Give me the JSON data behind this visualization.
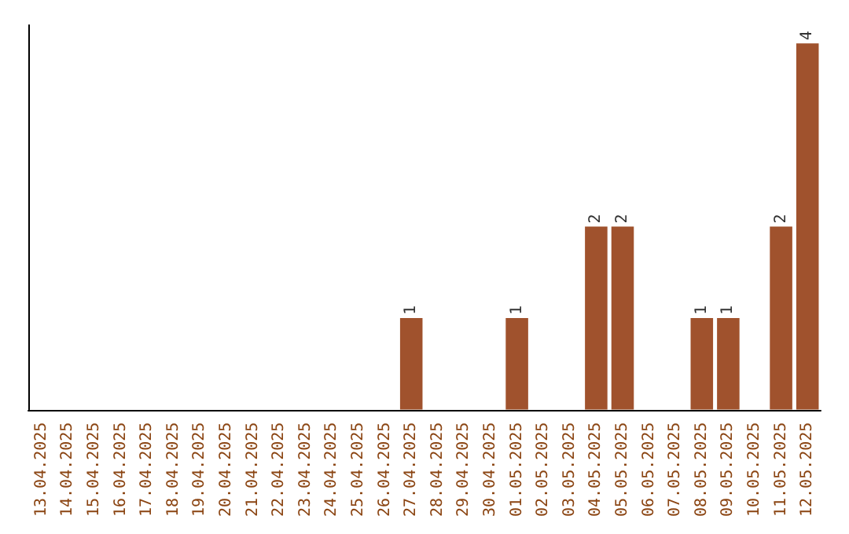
{
  "chart_data": {
    "type": "bar",
    "categories": [
      "13.04.2025",
      "14.04.2025",
      "15.04.2025",
      "16.04.2025",
      "17.04.2025",
      "18.04.2025",
      "19.04.2025",
      "20.04.2025",
      "21.04.2025",
      "22.04.2025",
      "23.04.2025",
      "24.04.2025",
      "25.04.2025",
      "26.04.2025",
      "27.04.2025",
      "28.04.2025",
      "29.04.2025",
      "30.04.2025",
      "01.05.2025",
      "02.05.2025",
      "03.05.2025",
      "04.05.2025",
      "05.05.2025",
      "06.05.2025",
      "07.05.2025",
      "08.05.2025",
      "09.05.2025",
      "10.05.2025",
      "11.05.2025",
      "12.05.2025"
    ],
    "values": [
      null,
      null,
      null,
      null,
      null,
      null,
      null,
      null,
      null,
      null,
      null,
      null,
      null,
      null,
      1,
      null,
      null,
      null,
      1,
      null,
      null,
      2,
      2,
      null,
      null,
      1,
      1,
      null,
      2,
      4
    ],
    "color": "#a0522d",
    "data_labels": true,
    "tick_labels": "x",
    "grid": false
  }
}
